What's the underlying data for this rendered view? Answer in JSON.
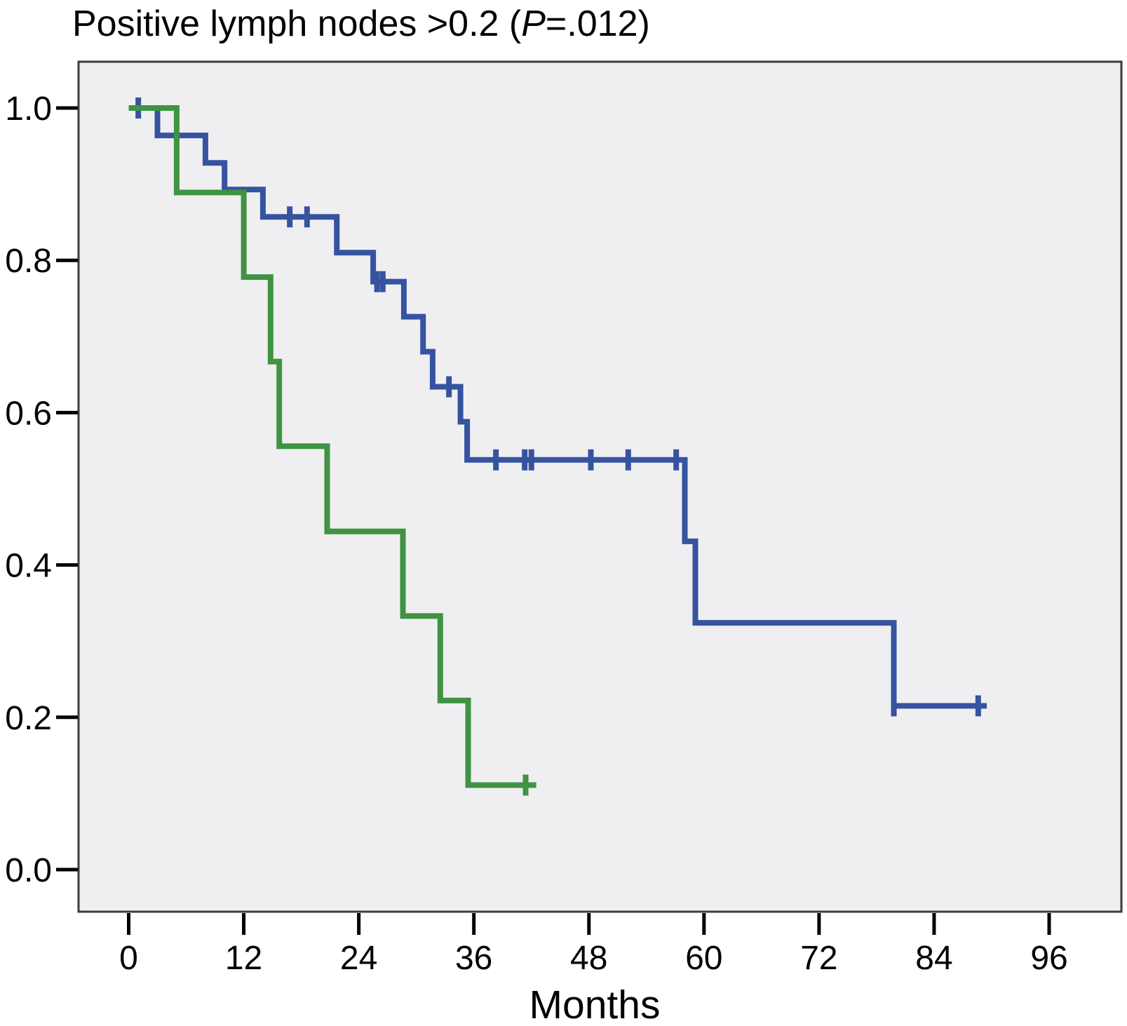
{
  "title": {
    "prefix": "Positive lymph nodes >0.2 (",
    "p_italic": "P",
    "suffix": "=.012)"
  },
  "colors": {
    "page_background": "#ffffff",
    "plot_background": "#efeff1",
    "frame": "#3c3c3c",
    "axis_tick": "#000000",
    "text": "#000000",
    "blue_series": "#35539f",
    "green_series": "#3f9342"
  },
  "chart_data": {
    "type": "line",
    "subtype": "kaplan-meier-step-survival",
    "title": "Positive lymph nodes >0.2 (P=.012)",
    "p_value": ".012",
    "xlabel": "Months",
    "ylabel": "",
    "x_ticks": [
      0,
      12,
      24,
      36,
      48,
      60,
      72,
      84,
      96
    ],
    "y_ticks": [
      1.0,
      0.8,
      0.6,
      0.4,
      0.2,
      0.0
    ],
    "y_tick_labels": [
      "1.0",
      "0.8",
      "0.6",
      "0.4",
      "0.2",
      "0.0"
    ],
    "xlim": [
      -5.2,
      103.5
    ],
    "ylim": [
      -0.054,
      1.059
    ],
    "grid": false,
    "legend": null,
    "series": [
      {
        "name": "blue-group",
        "color": "#35539f",
        "points": [
          [
            0,
            1.0
          ],
          [
            3,
            1.0
          ],
          [
            3,
            0.964
          ],
          [
            8,
            0.964
          ],
          [
            8,
            0.928
          ],
          [
            10,
            0.928
          ],
          [
            10,
            0.893
          ],
          [
            14,
            0.893
          ],
          [
            14,
            0.857
          ],
          [
            21.7,
            0.857
          ],
          [
            21.7,
            0.81
          ],
          [
            25.5,
            0.81
          ],
          [
            25.5,
            0.772
          ],
          [
            28.7,
            0.772
          ],
          [
            28.7,
            0.726
          ],
          [
            30.7,
            0.726
          ],
          [
            30.7,
            0.68
          ],
          [
            31.7,
            0.68
          ],
          [
            31.7,
            0.634
          ],
          [
            34.6,
            0.634
          ],
          [
            34.6,
            0.588
          ],
          [
            35.3,
            0.588
          ],
          [
            35.3,
            0.538
          ],
          [
            58,
            0.538
          ],
          [
            58,
            0.431
          ],
          [
            59.1,
            0.431
          ],
          [
            59.1,
            0.324
          ],
          [
            79.8,
            0.324
          ],
          [
            79.8,
            0.215
          ],
          [
            89.5,
            0.215
          ]
        ],
        "censor_marks": [
          [
            1,
            1.0
          ],
          [
            16.8,
            0.857
          ],
          [
            18.6,
            0.857
          ],
          [
            25.9,
            0.772
          ],
          [
            26.5,
            0.772
          ],
          [
            33.4,
            0.634
          ],
          [
            38.3,
            0.538
          ],
          [
            41.3,
            0.538
          ],
          [
            42.0,
            0.538
          ],
          [
            48.2,
            0.538
          ],
          [
            52.1,
            0.538
          ],
          [
            57.1,
            0.538
          ],
          [
            79.8,
            0.215
          ],
          [
            88.6,
            0.215
          ]
        ]
      },
      {
        "name": "green-group",
        "color": "#3f9342",
        "points": [
          [
            0,
            1.0
          ],
          [
            5,
            1.0
          ],
          [
            5,
            0.889
          ],
          [
            12,
            0.889
          ],
          [
            12,
            0.778
          ],
          [
            14.8,
            0.778
          ],
          [
            14.8,
            0.667
          ],
          [
            15.7,
            0.667
          ],
          [
            15.7,
            0.556
          ],
          [
            20.7,
            0.556
          ],
          [
            20.7,
            0.444
          ],
          [
            28.6,
            0.444
          ],
          [
            28.6,
            0.333
          ],
          [
            32.5,
            0.333
          ],
          [
            32.5,
            0.222
          ],
          [
            35.4,
            0.222
          ],
          [
            35.4,
            0.111
          ],
          [
            42.5,
            0.111
          ]
        ],
        "censor_marks": [
          [
            41.4,
            0.111
          ]
        ]
      }
    ]
  }
}
